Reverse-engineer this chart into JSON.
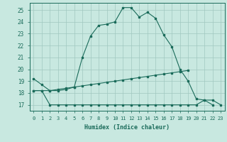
{
  "title": "",
  "xlabel": "Humidex (Indice chaleur)",
  "background_color": "#c8e8e0",
  "grid_color": "#a0c8c0",
  "line_color": "#1a6b5a",
  "xlim": [
    -0.5,
    23.5
  ],
  "ylim": [
    16.5,
    25.6
  ],
  "yticks": [
    17,
    18,
    19,
    20,
    21,
    22,
    23,
    24,
    25
  ],
  "xticks": [
    0,
    1,
    2,
    3,
    4,
    5,
    6,
    7,
    8,
    9,
    10,
    11,
    12,
    13,
    14,
    15,
    16,
    17,
    18,
    19,
    20,
    21,
    22,
    23
  ],
  "series1_x": [
    0,
    1,
    2,
    3,
    4,
    5,
    6,
    7,
    8,
    9,
    10,
    11,
    12,
    13,
    14,
    15,
    16,
    17,
    18,
    19,
    20,
    21,
    22
  ],
  "series1_y": [
    19.2,
    18.7,
    18.2,
    18.2,
    18.3,
    18.5,
    21.0,
    22.8,
    23.7,
    23.8,
    24.0,
    25.2,
    25.2,
    24.4,
    24.8,
    24.3,
    22.9,
    21.9,
    20.0,
    19.0,
    17.5,
    17.4,
    17.0
  ],
  "series2_x": [
    0,
    1,
    2,
    3,
    4,
    5,
    6,
    7,
    8,
    9,
    10,
    11,
    12,
    13,
    14,
    15,
    16,
    17,
    18,
    19
  ],
  "series2_y": [
    18.2,
    18.2,
    18.2,
    18.3,
    18.4,
    18.5,
    18.6,
    18.7,
    18.8,
    18.9,
    19.0,
    19.1,
    19.2,
    19.3,
    19.4,
    19.5,
    19.6,
    19.7,
    19.8,
    19.9
  ],
  "series3_x": [
    0,
    1,
    2,
    3,
    4,
    5,
    6,
    7,
    8,
    9,
    10,
    11,
    12,
    13,
    14,
    15,
    16,
    17,
    18,
    19,
    20,
    21,
    22,
    23
  ],
  "series3_y": [
    18.2,
    18.2,
    17.0,
    17.0,
    17.0,
    17.0,
    17.0,
    17.0,
    17.0,
    17.0,
    17.0,
    17.0,
    17.0,
    17.0,
    17.0,
    17.0,
    17.0,
    17.0,
    17.0,
    17.0,
    17.0,
    17.4,
    17.4,
    17.0
  ]
}
